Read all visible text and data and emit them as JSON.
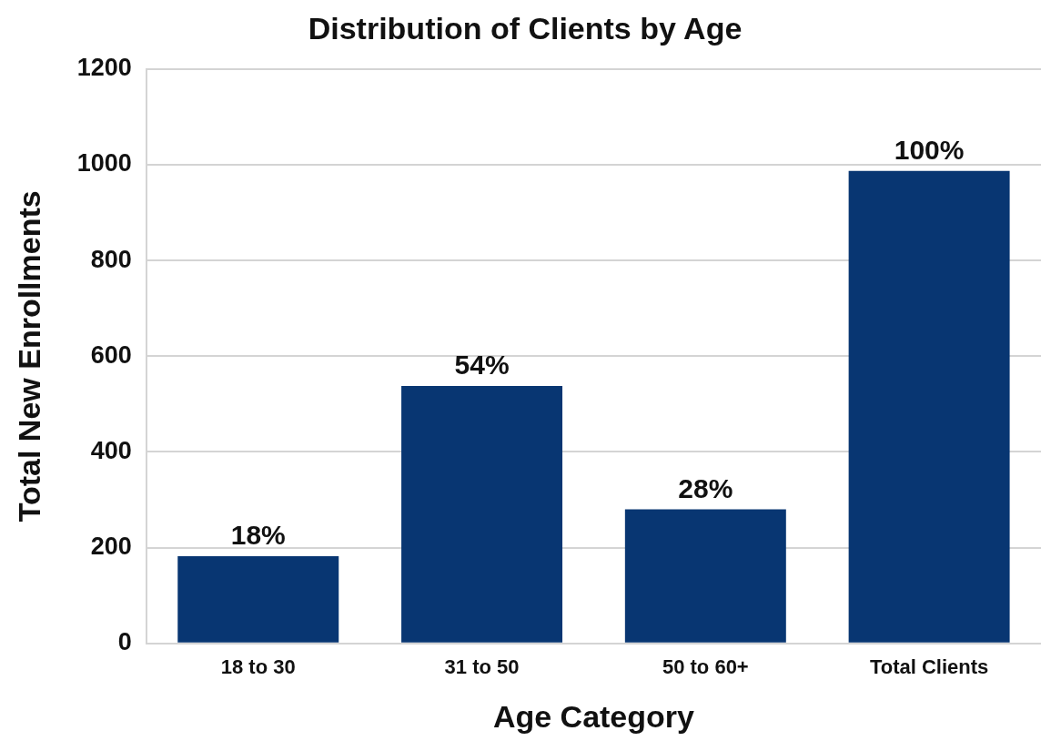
{
  "chart_data": {
    "type": "bar",
    "title": "Distribution of Clients by Age",
    "xlabel": "Age Category",
    "ylabel": "Total New Enrollments",
    "categories": [
      "18 to 30",
      "31 to 50",
      "50 to 60+",
      "Total Clients"
    ],
    "values": [
      182,
      538,
      280,
      987
    ],
    "color": "#083672",
    "annotations": [
      {
        "text": "18%",
        "x": "18 to 30",
        "y": 182
      },
      {
        "text": "54%",
        "x": "31 to 50",
        "y": 538
      },
      {
        "text": "28%",
        "x": "50 to 60+",
        "y": 280
      },
      {
        "text": "100%",
        "x": "Total Clients",
        "y": 987
      }
    ],
    "ylim": [
      0,
      1200
    ],
    "yticks": [
      0,
      200,
      400,
      600,
      800,
      1000,
      1200
    ],
    "grid": "y",
    "legend": false
  }
}
